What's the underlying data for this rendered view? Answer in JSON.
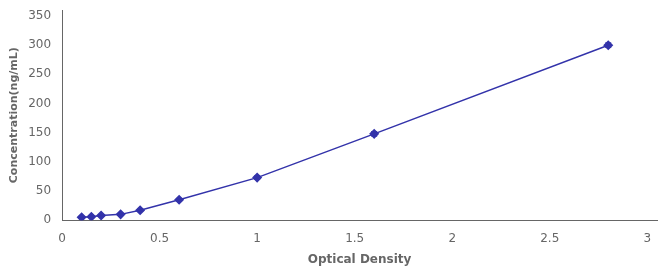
{
  "chart_data": {
    "type": "line",
    "x": [
      0.1,
      0.15,
      0.2,
      0.3,
      0.4,
      0.6,
      1.0,
      1.6,
      2.8
    ],
    "values": [
      5,
      6,
      8,
      10,
      17,
      35,
      73,
      148,
      300
    ],
    "yerr": [
      1.0,
      1.0,
      1.0,
      1.5,
      1.5,
      2.0,
      3.0,
      4.0,
      4.0
    ],
    "color": "#3333aa",
    "marker": "diamond",
    "line_style": "solid",
    "xlabel": "Optical Density",
    "ylabel": "Concentration(ng/mL)",
    "xlim": [
      0,
      3.05
    ],
    "ylim": [
      0,
      360
    ],
    "xticks": [
      0,
      0.5,
      1,
      1.5,
      2,
      2.5,
      3
    ],
    "yticks": [
      0,
      50,
      100,
      150,
      200,
      250,
      300,
      350
    ],
    "grid": false
  }
}
